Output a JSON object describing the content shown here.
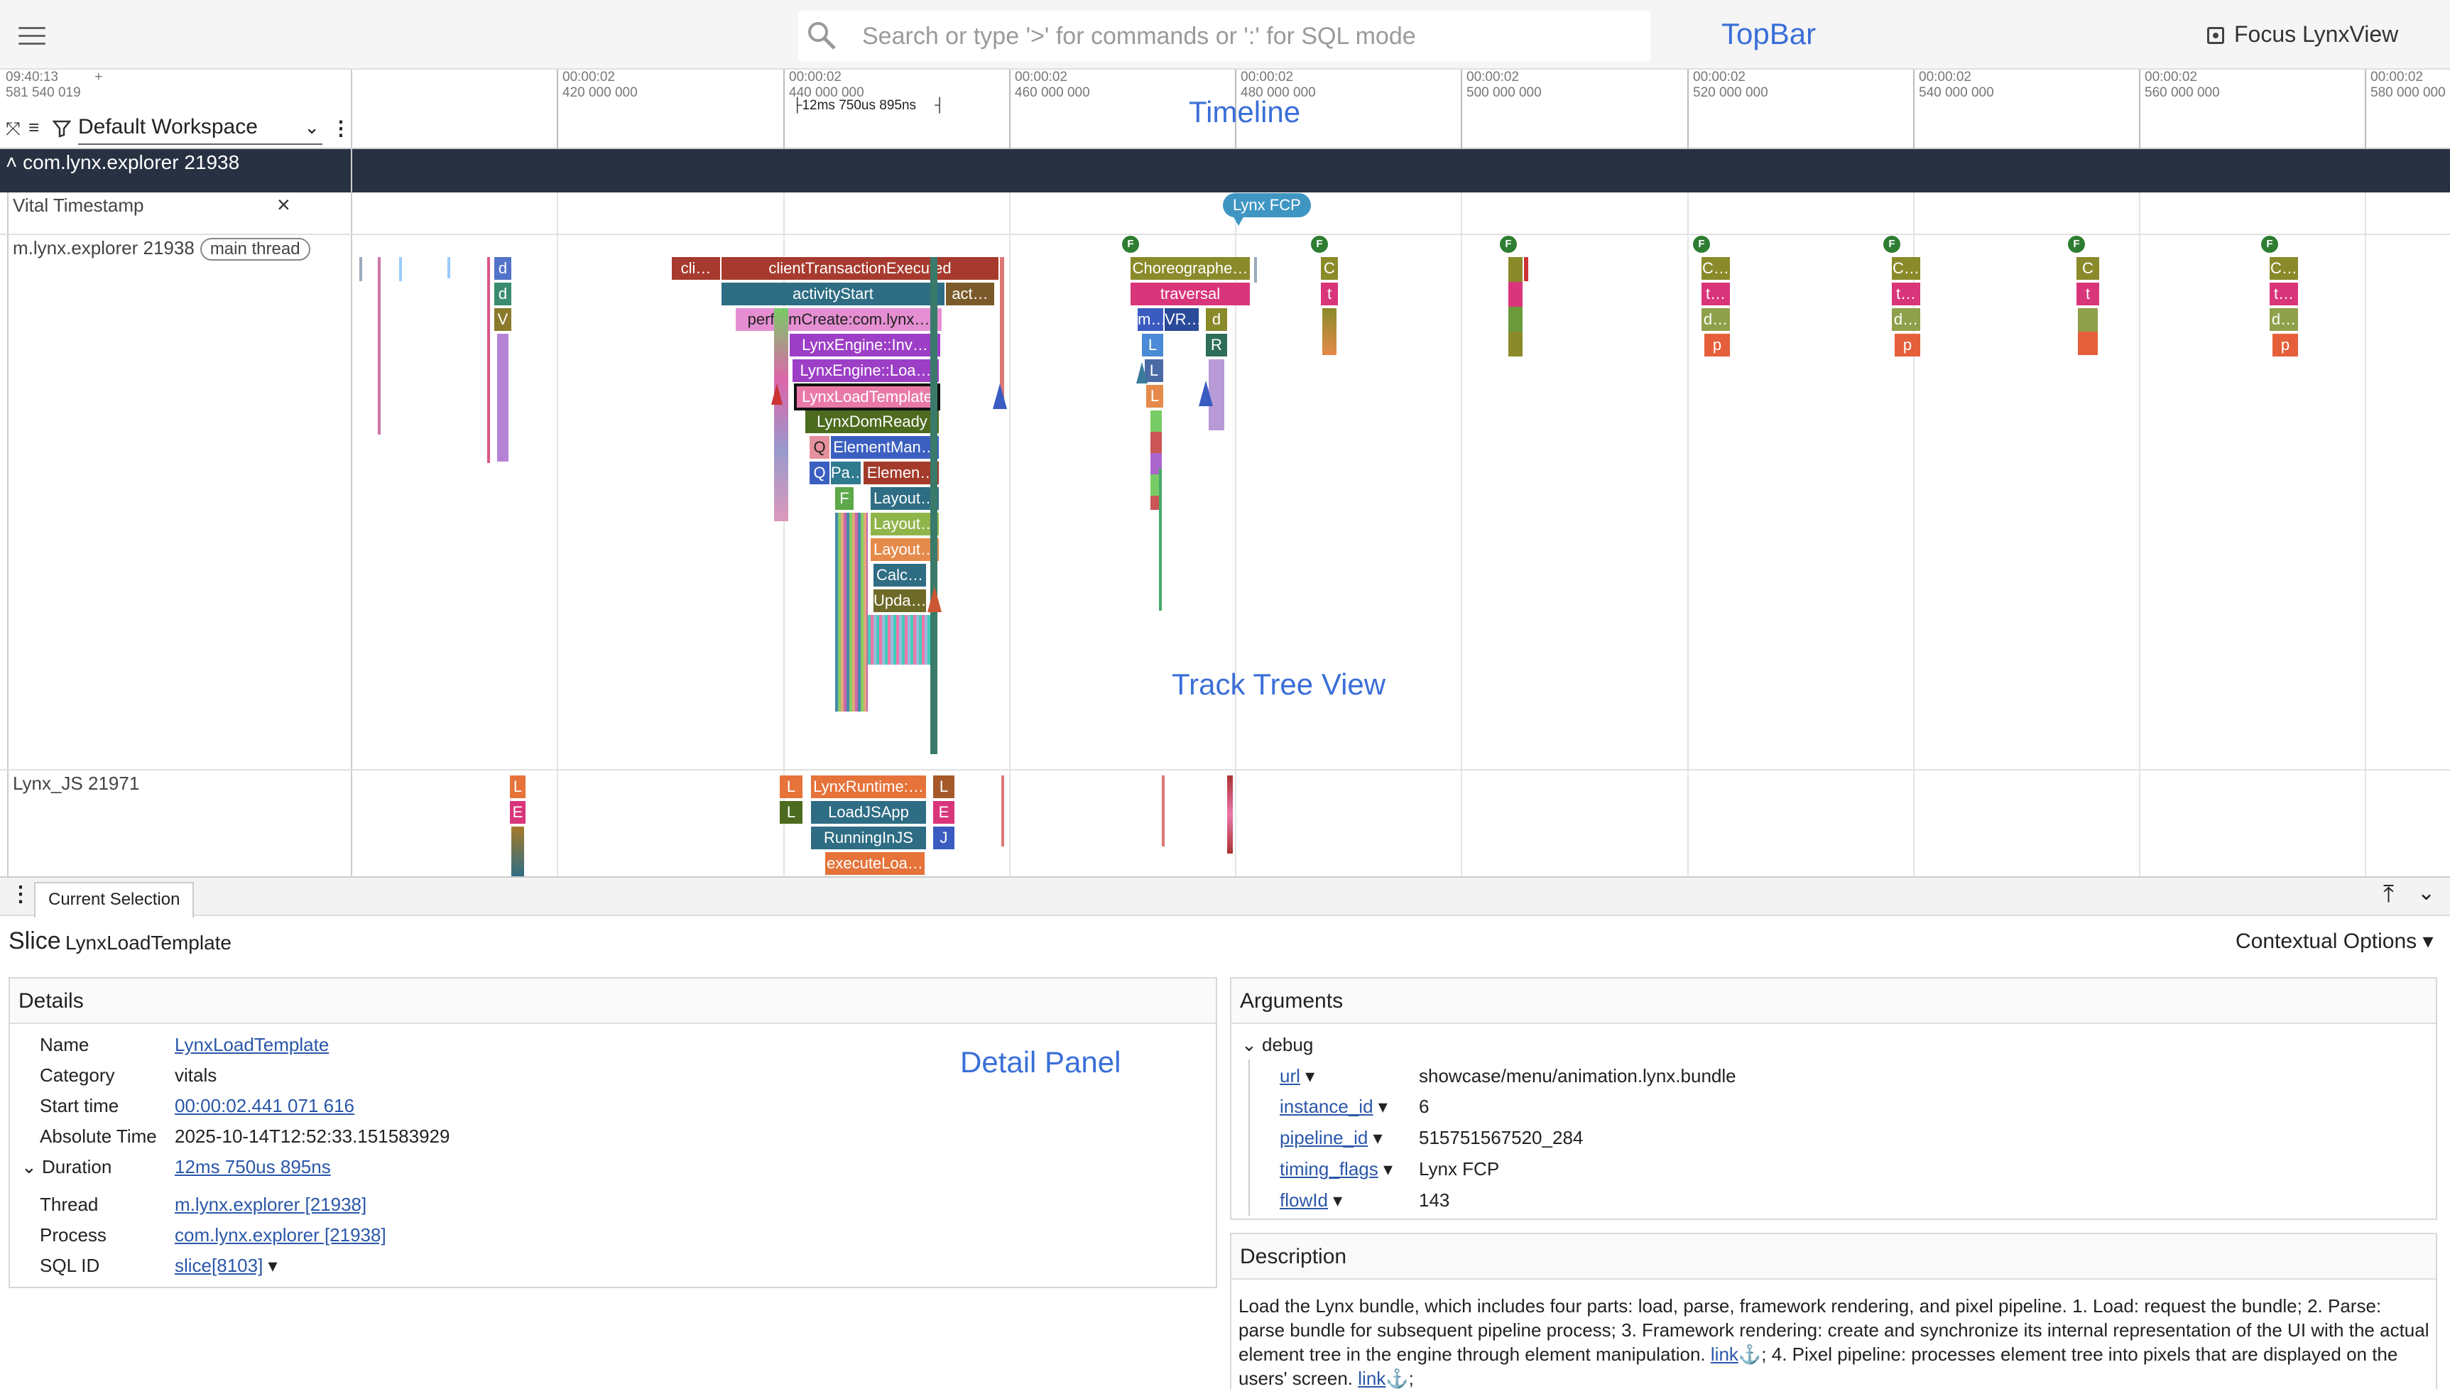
{
  "topbar": {
    "search_placeholder": "Search or type '>' for commands or ':' for SQL mode",
    "annotation": "TopBar",
    "focus_label": "Focus LynxView"
  },
  "ruler": {
    "left_time": "09:40:13",
    "left_ns": "581 540 019",
    "plus": "+",
    "ticks": [
      {
        "time": "00:00:02",
        "ns": "420 000 000"
      },
      {
        "time": "00:00:02",
        "ns": "440 000 000"
      },
      {
        "time": "00:00:02",
        "ns": "460 000 000"
      },
      {
        "time": "00:00:02",
        "ns": "480 000 000"
      },
      {
        "time": "00:00:02",
        "ns": "500 000 000"
      },
      {
        "time": "00:00:02",
        "ns": "520 000 000"
      },
      {
        "time": "00:00:02",
        "ns": "540 000 000"
      },
      {
        "time": "00:00:02",
        "ns": "560 000 000"
      },
      {
        "time": "00:00:02",
        "ns": "580 000 000"
      }
    ],
    "measure": "12ms 750us 895ns",
    "annotation": "Timeline"
  },
  "workspace": {
    "name": "Default Workspace"
  },
  "tracks": {
    "process_header": "com.lynx.explorer 21938",
    "vital": "Vital Timestamp",
    "main_thread": "m.lynx.explorer 21938",
    "main_thread_pill": "main thread",
    "js_thread": "Lynx_JS 21971",
    "fcp_bubble": "Lynx FCP",
    "annotation": "Track Tree View"
  },
  "slices": {
    "s1": "cli…",
    "s2": "clientTransactionExecuted",
    "s3": "activityStart",
    "s4": "act…",
    "s5": "performCreate:com.lynx…",
    "s6": "LynxEngine::Inv…",
    "s7": "LynxEngine::Loa…",
    "s8": "LynxLoadTemplate",
    "s9": "LynxDomReady",
    "s10": "Q",
    "s11": "ElementMan…",
    "s12": "Q",
    "s13": "Pa…",
    "s14": "Elemen…",
    "s15": "F",
    "s16": "Layout…",
    "s17": "Layout…",
    "s18": "Layout…",
    "s19": "Calc…",
    "s20": "Upda…",
    "c1": "Choreographe…",
    "c2": "traversal",
    "c3": "m…",
    "c4": "VR…",
    "c5": "d",
    "c6": "L",
    "c7": "R",
    "c8": "L",
    "c9": "L",
    "d1": "d",
    "d2": "d",
    "d3": "V",
    "j1": "L",
    "j2": "E",
    "j3": "L",
    "j4": "LynxRuntime:…",
    "j5": "L",
    "j6": "L",
    "j7": "LoadJSApp",
    "j8": "E",
    "j9": "RunningInJS",
    "j10": "J",
    "j11": "executeLoa…",
    "f": "F",
    "g1": "C",
    "g2": "t",
    "g3": "C…",
    "g4": "t…",
    "g5": "d…",
    "g6": "p"
  },
  "tabs": {
    "current": "Current Selection"
  },
  "detail": {
    "annotation": "Detail Panel",
    "slice_label": "Slice",
    "slice_name": "LynxLoadTemplate",
    "contextual": "Contextual Options",
    "details_title": "Details",
    "name_k": "Name",
    "name_v": "LynxLoadTemplate",
    "category_k": "Category",
    "category_v": "vitals",
    "start_k": "Start time",
    "start_v": "00:00:02.441 071 616",
    "abs_k": "Absolute Time",
    "abs_v": "2025-10-14T12:52:33.151583929",
    "dur_k": "Duration",
    "dur_v": "12ms 750us 895ns",
    "thread_k": "Thread",
    "thread_v": "m.lynx.explorer [21938]",
    "process_k": "Process",
    "process_v": "com.lynx.explorer [21938]",
    "sqlid_k": "SQL ID",
    "sqlid_v": "slice[8103]"
  },
  "arguments": {
    "title": "Arguments",
    "group": "debug",
    "url_k": "url",
    "url_v": "showcase/menu/animation.lynx.bundle",
    "instance_k": "instance_id",
    "instance_v": "6",
    "pipeline_k": "pipeline_id",
    "pipeline_v": "515751567520_284",
    "timing_k": "timing_flags",
    "timing_v": "Lynx FCP",
    "flow_k": "flowId",
    "flow_v": "143"
  },
  "description": {
    "title": "Description",
    "text1": "Load the Lynx bundle, which includes four parts: load, parse, framework rendering, and pixel pipeline. 1. Load: request the bundle; 2. Parse: parse bundle for subsequent pipeline process; 3. Framework rendering: create and synchronize its internal representation of the UI with the actual element tree in the engine through element manipulation. ",
    "link1": "link",
    "text2": "; 4. Pixel pipeline: processes element tree into pixels that are displayed on the users' screen. ",
    "link2": "link",
    "text3": ";"
  }
}
